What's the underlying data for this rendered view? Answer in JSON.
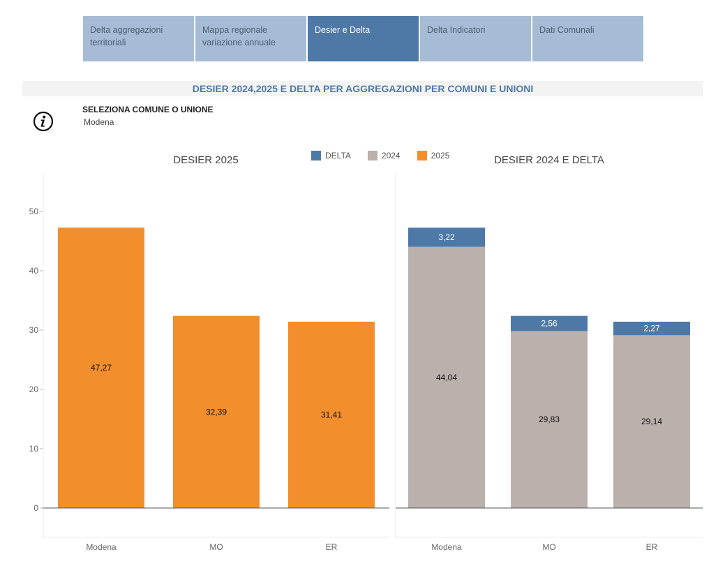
{
  "tabs": [
    {
      "label": "Delta aggregazioni territoriali",
      "active": false
    },
    {
      "label": "Mappa regionale variazione annuale",
      "active": false
    },
    {
      "label": "Desier e Delta",
      "active": true
    },
    {
      "label": "Delta Indicatori",
      "active": false
    },
    {
      "label": "Dati Comunali",
      "active": false
    }
  ],
  "header": {
    "title": "DESIER 2024,2025 E DELTA PER AGGREGAZIONI PER COMUNI E UNIONI"
  },
  "filter": {
    "label": "SELEZIONA COMUNE O UNIONE",
    "value": "Modena",
    "icon": "info-icon"
  },
  "legend": [
    {
      "label": "DELTA",
      "color": "#4e79a7"
    },
    {
      "label": "2024",
      "color": "#bab0ac"
    },
    {
      "label": "2025",
      "color": "#f28e2b"
    }
  ],
  "chart_data": [
    {
      "type": "bar",
      "title": "DESIER 2025",
      "categories": [
        "Modena",
        "MO",
        "ER"
      ],
      "series": [
        {
          "name": "2025",
          "values": [
            47.27,
            32.39,
            31.41
          ],
          "labels": [
            "47,27",
            "32,39",
            "31,41"
          ],
          "color": "#f28e2b"
        }
      ],
      "ylim": [
        -5,
        56
      ],
      "yticks": [
        0,
        10,
        20,
        30,
        40,
        50
      ]
    },
    {
      "type": "bar",
      "stacked": true,
      "title": "DESIER 2024 E DELTA",
      "categories": [
        "Modena",
        "MO",
        "ER"
      ],
      "series": [
        {
          "name": "2024",
          "values": [
            44.04,
            29.83,
            29.14
          ],
          "labels": [
            "44,04",
            "29,83",
            "29,14"
          ],
          "color": "#bab0ac"
        },
        {
          "name": "DELTA",
          "values": [
            3.22,
            2.56,
            2.27
          ],
          "labels": [
            "3,22",
            "2,56",
            "2,27"
          ],
          "color": "#4e79a7"
        }
      ],
      "ylim": [
        -5,
        56
      ]
    }
  ]
}
